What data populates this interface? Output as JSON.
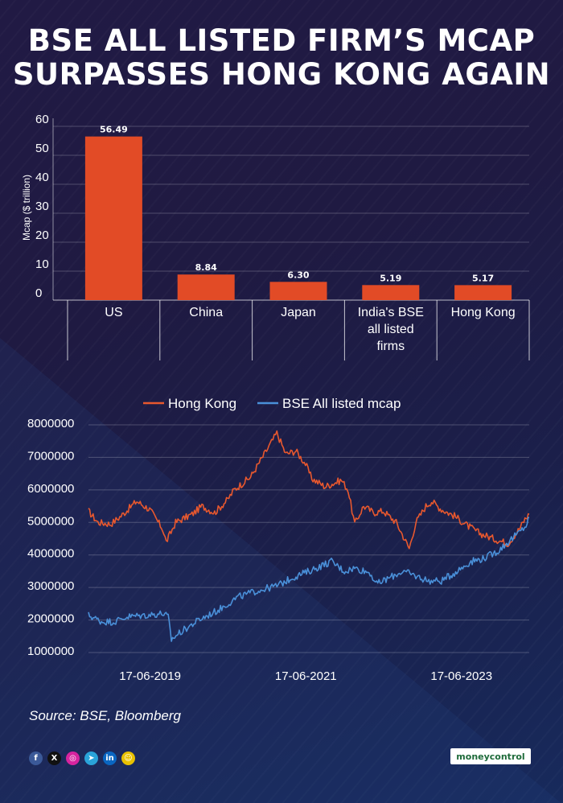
{
  "title": {
    "line1": "BSE ALL LISTED FIRM’S MCAP",
    "line2": "SURPASSES HONG KONG AGAIN"
  },
  "chart_data": [
    {
      "type": "bar",
      "ylabel": "Mcap ($ trillion)",
      "ylim": [
        0,
        60
      ],
      "yticks": [
        0,
        10,
        20,
        30,
        40,
        50,
        60
      ],
      "categories": [
        "US",
        "China",
        "Japan",
        "India's BSE all listed firms",
        "Hong Kong"
      ],
      "category_lines": [
        [
          "US"
        ],
        [
          "China"
        ],
        [
          "Japan"
        ],
        [
          "India's BSE",
          "all listed",
          "firms"
        ],
        [
          "Hong Kong"
        ]
      ],
      "values": [
        56.49,
        8.84,
        6.3,
        5.19,
        5.17
      ],
      "value_labels": [
        "56.49",
        "8.84",
        "6.30",
        "5.19",
        "5.17"
      ],
      "color": "#e24b26",
      "grid": true
    },
    {
      "type": "line",
      "legend_position": "top",
      "ylim": [
        1000000,
        8000000
      ],
      "yticks": [
        "8000000",
        "7000000",
        "6000000",
        "5000000",
        "4000000",
        "3000000",
        "2000000",
        "1000000"
      ],
      "xticks": [
        "17-06-2019",
        "17-06-2021",
        "17-06-2023"
      ],
      "x_start": "2018-09-01",
      "x_end": "2024-04-30",
      "series": [
        {
          "name": "Hong Kong",
          "color": "#e8582e",
          "points": [
            [
              "2018-09-01",
              5350000
            ],
            [
              "2018-10-15",
              5000000
            ],
            [
              "2018-12-15",
              4950000
            ],
            [
              "2019-02-01",
              5200000
            ],
            [
              "2019-04-15",
              5650000
            ],
            [
              "2019-06-15",
              5400000
            ],
            [
              "2019-08-15",
              4800000
            ],
            [
              "2019-09-01",
              4400000
            ],
            [
              "2019-10-15",
              5000000
            ],
            [
              "2019-12-31",
              5250000
            ],
            [
              "2020-02-15",
              5500000
            ],
            [
              "2020-04-15",
              5300000
            ],
            [
              "2020-06-15",
              5700000
            ],
            [
              "2020-07-15",
              6000000
            ],
            [
              "2020-10-01",
              6400000
            ],
            [
              "2021-01-01",
              7400000
            ],
            [
              "2021-02-01",
              7750000
            ],
            [
              "2021-03-15",
              7100000
            ],
            [
              "2021-05-01",
              7200000
            ],
            [
              "2021-06-15",
              6800000
            ],
            [
              "2021-07-15",
              6350000
            ],
            [
              "2021-09-15",
              6100000
            ],
            [
              "2021-12-01",
              6300000
            ],
            [
              "2022-01-01",
              6000000
            ],
            [
              "2022-02-01",
              4950000
            ],
            [
              "2022-03-15",
              5500000
            ],
            [
              "2022-05-01",
              5300000
            ],
            [
              "2022-06-15",
              5350000
            ],
            [
              "2022-08-15",
              5000000
            ],
            [
              "2022-10-15",
              4200000
            ],
            [
              "2022-11-15",
              5000000
            ],
            [
              "2023-01-01",
              5500000
            ],
            [
              "2023-01-28",
              5650000
            ],
            [
              "2023-03-15",
              5400000
            ],
            [
              "2023-05-15",
              5200000
            ],
            [
              "2023-07-15",
              4900000
            ],
            [
              "2023-09-15",
              4650000
            ],
            [
              "2023-11-15",
              4500000
            ],
            [
              "2024-01-22",
              4350000
            ],
            [
              "2024-03-15",
              4800000
            ],
            [
              "2024-04-10",
              5100000
            ],
            [
              "2024-04-30",
              5250000
            ]
          ]
        },
        {
          "name": "BSE All listed mcap",
          "color": "#4a90d9",
          "points": [
            [
              "2018-09-01",
              2150000
            ],
            [
              "2018-11-01",
              1950000
            ],
            [
              "2019-01-01",
              1950000
            ],
            [
              "2019-03-01",
              2100000
            ],
            [
              "2019-06-01",
              2150000
            ],
            [
              "2019-08-15",
              2200000
            ],
            [
              "2019-09-10",
              2100000
            ],
            [
              "2019-09-25",
              1400000
            ],
            [
              "2019-11-01",
              1600000
            ],
            [
              "2020-02-01",
              2000000
            ],
            [
              "2020-05-01",
              2300000
            ],
            [
              "2020-08-01",
              2700000
            ],
            [
              "2020-11-01",
              2900000
            ],
            [
              "2021-02-01",
              3050000
            ],
            [
              "2021-04-15",
              3300000
            ],
            [
              "2021-07-01",
              3500000
            ],
            [
              "2021-10-15",
              3800000
            ],
            [
              "2021-12-15",
              3500000
            ],
            [
              "2022-02-01",
              3600000
            ],
            [
              "2022-04-15",
              3450000
            ],
            [
              "2022-05-15",
              3100000
            ],
            [
              "2022-07-15",
              3300000
            ],
            [
              "2022-09-15",
              3500000
            ],
            [
              "2022-11-15",
              3350000
            ],
            [
              "2023-01-15",
              3200000
            ],
            [
              "2023-03-15",
              3200000
            ],
            [
              "2023-05-15",
              3450000
            ],
            [
              "2023-08-01",
              3800000
            ],
            [
              "2023-10-01",
              3900000
            ],
            [
              "2023-12-01",
              4100000
            ],
            [
              "2024-02-01",
              4450000
            ],
            [
              "2024-03-15",
              4700000
            ],
            [
              "2024-04-15",
              4900000
            ],
            [
              "2024-04-30",
              5150000
            ]
          ]
        }
      ]
    }
  ],
  "source": "Source: BSE, Bloomberg",
  "footer": {
    "brand": "moneycontrol",
    "social_icons": [
      {
        "name": "facebook-icon",
        "glyph": "f",
        "color": "#3b5998"
      },
      {
        "name": "x-icon",
        "glyph": "X",
        "color": "#111111"
      },
      {
        "name": "instagram-icon",
        "glyph": "◎",
        "color": "#d6249f"
      },
      {
        "name": "telegram-icon",
        "glyph": "➤",
        "color": "#2aa3d9"
      },
      {
        "name": "linkedin-icon",
        "glyph": "in",
        "color": "#0a66c2"
      },
      {
        "name": "snapchat-icon",
        "glyph": "☺",
        "color": "#e8c100"
      }
    ]
  }
}
